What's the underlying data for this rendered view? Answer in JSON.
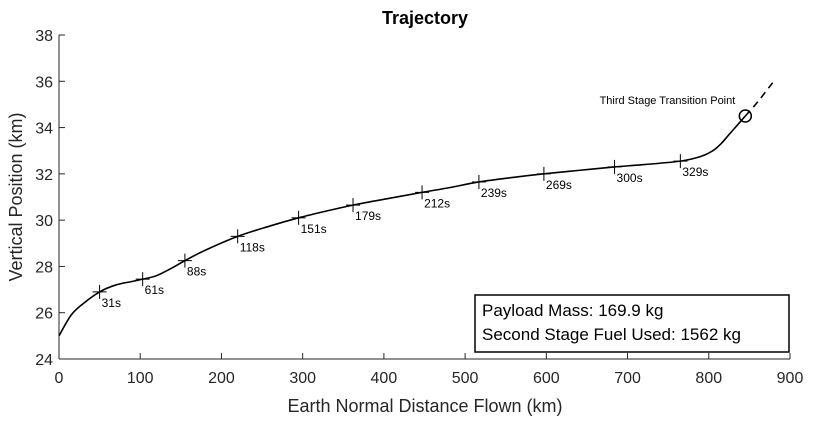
{
  "chart_data": {
    "type": "line",
    "title": "Trajectory",
    "xlabel": "Earth Normal Distance Flown (km)",
    "ylabel": "Vertical Position (km)",
    "xlim": [
      0,
      900
    ],
    "ylim": [
      24,
      38
    ],
    "x_ticks": [
      0,
      100,
      200,
      300,
      400,
      500,
      600,
      700,
      800,
      900
    ],
    "y_ticks": [
      24,
      26,
      28,
      30,
      32,
      34,
      36,
      38
    ],
    "grid": false,
    "series": [
      {
        "style": "solid",
        "x": [
          0,
          15,
          30,
          50,
          70,
          90,
          103,
          120,
          140,
          155,
          180,
          220,
          260,
          295,
          330,
          362,
          400,
          447,
          480,
          517,
          560,
          597,
          640,
          684,
          720,
          765,
          790,
          805,
          815,
          825,
          835,
          845
        ],
        "y": [
          25.0,
          25.9,
          26.4,
          26.9,
          27.2,
          27.35,
          27.45,
          27.6,
          27.95,
          28.25,
          28.7,
          29.3,
          29.75,
          30.1,
          30.4,
          30.65,
          30.9,
          31.2,
          31.4,
          31.65,
          31.85,
          32.0,
          32.15,
          32.3,
          32.4,
          32.55,
          32.75,
          33.0,
          33.3,
          33.7,
          34.1,
          34.5
        ]
      },
      {
        "style": "dashed",
        "x": [
          845,
          860,
          880
        ],
        "y": [
          34.5,
          35.1,
          36.0
        ]
      }
    ],
    "time_markers": [
      {
        "x": 50,
        "y": 26.9,
        "label": "31s"
      },
      {
        "x": 103,
        "y": 27.45,
        "label": "61s"
      },
      {
        "x": 155,
        "y": 28.25,
        "label": "88s"
      },
      {
        "x": 220,
        "y": 29.3,
        "label": "118s"
      },
      {
        "x": 295,
        "y": 30.1,
        "label": "151s"
      },
      {
        "x": 362,
        "y": 30.65,
        "label": "179s"
      },
      {
        "x": 447,
        "y": 31.2,
        "label": "212s"
      },
      {
        "x": 517,
        "y": 31.65,
        "label": "239s"
      },
      {
        "x": 597,
        "y": 32.0,
        "label": "269s"
      },
      {
        "x": 684,
        "y": 32.3,
        "label": "300s"
      },
      {
        "x": 765,
        "y": 32.55,
        "label": "329s"
      }
    ],
    "transition_point": {
      "x": 845,
      "y": 34.5,
      "label": "Third Stage Transition Point"
    },
    "info_box": {
      "location": "bottom-right",
      "lines": [
        "Payload Mass: 169.9 kg",
        "Second Stage Fuel Used: 1562 kg"
      ]
    }
  }
}
